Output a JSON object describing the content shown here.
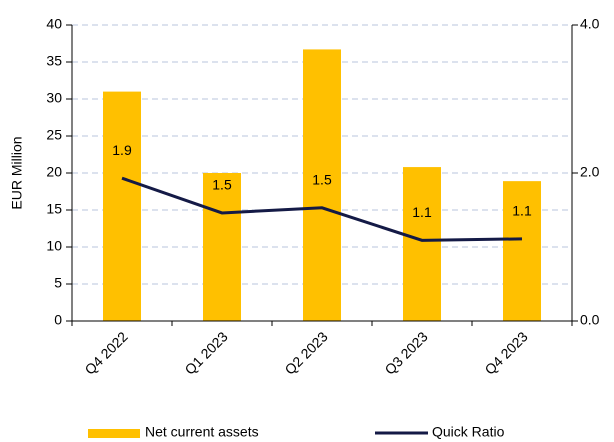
{
  "chart_data": {
    "type": "bar_line",
    "y_label": "EUR Million",
    "categories": [
      "Q4 2022",
      "Q1 2023",
      "Q2 2023",
      "Q3 2023",
      "Q4 2023"
    ],
    "series": [
      {
        "name": "Net current assets",
        "type": "bar",
        "color": "#FFC000",
        "values": [
          31,
          20,
          36.7,
          20.8,
          18.9
        ]
      },
      {
        "name": "Quick Ratio",
        "type": "line",
        "axis": "y2",
        "color": "#141a46",
        "values": [
          1.93,
          1.46,
          1.53,
          1.09,
          1.11
        ],
        "value_labels": [
          "1.9",
          "1.5",
          "1.5",
          "1.1",
          "1.1"
        ]
      }
    ],
    "ylim": [
      0,
      40
    ],
    "yticks": [
      0,
      5,
      10,
      15,
      20,
      25,
      30,
      35,
      40
    ],
    "y2lim": [
      0,
      4
    ],
    "y2ticks": [
      {
        "value": 0,
        "label": "0.0"
      },
      {
        "value": 2,
        "label": "2.0"
      },
      {
        "value": 4,
        "label": "4.0"
      }
    ],
    "grid": true,
    "legend": "bottom"
  }
}
